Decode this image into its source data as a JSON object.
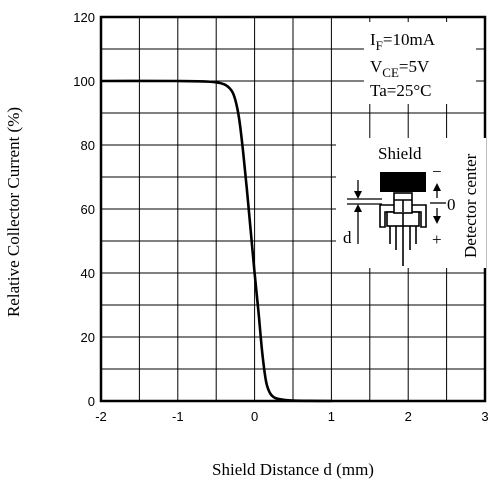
{
  "chart_data": {
    "type": "line",
    "title": "",
    "xlabel": "Shield Distance d (mm)",
    "ylabel": "Relative Collector Current (%)",
    "xlim": [
      -2,
      3
    ],
    "ylim": [
      0,
      120
    ],
    "x_major_ticks": [
      -2,
      -1,
      0,
      1,
      2,
      3
    ],
    "x_tick_labels": [
      "-2",
      "-1",
      "0",
      "1",
      "2",
      "3"
    ],
    "y_major_ticks": [
      0,
      20,
      40,
      60,
      80,
      100,
      120
    ],
    "y_tick_labels": [
      "0",
      "20",
      "40",
      "60",
      "80",
      "100",
      "120"
    ],
    "grid": true,
    "series": [
      {
        "color": "#000000",
        "x": [
          -2.0,
          -1.0,
          -0.6,
          -0.4,
          -0.3,
          -0.25,
          -0.2,
          -0.15,
          -0.1,
          -0.05,
          0.0,
          0.05,
          0.1,
          0.15,
          0.2,
          0.25,
          0.3,
          0.4,
          0.5,
          0.7,
          1.0
        ],
        "y": [
          100,
          100,
          99.8,
          99,
          97,
          94,
          88,
          78,
          66,
          53,
          40,
          28,
          15,
          6,
          2.5,
          1.2,
          0.7,
          0.3,
          0.15,
          0.05,
          0
        ]
      }
    ],
    "annotations": {
      "condition_if": {
        "main": "I",
        "sub": "F",
        "rest": "=10mA"
      },
      "condition_vce": {
        "main": "V",
        "sub": "CE",
        "rest": "=5V"
      },
      "condition_ta": "Ta=25°C",
      "shield_label": "Shield",
      "detector_center_label": "Detector center",
      "d_label": "d",
      "minus_label": "−",
      "zero_label": "0",
      "plus_label": "+"
    }
  }
}
